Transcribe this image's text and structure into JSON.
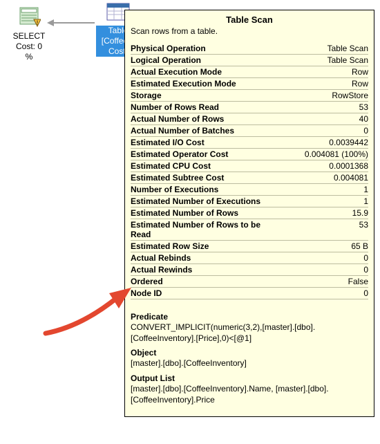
{
  "operators": {
    "select": {
      "label_line1": "SELECT",
      "label_line2": "Cost: 0 %",
      "icon_warn_color": "#f6c340",
      "icon_fill": "#d5ead0",
      "icon_border": "#6fa36f"
    },
    "scan": {
      "label_line1": "Table",
      "label_line2": "[CoffeeIn",
      "label_line3": "Cost:",
      "icon_fill": "#f4f4f4",
      "icon_border": "#5a5aa8",
      "icon_header": "#3a6eaa"
    }
  },
  "connector": {
    "line_color": "#9a9a9a",
    "arrow_color": "#9a9a9a"
  },
  "tooltip": {
    "title": "Table Scan",
    "subtitle": "Scan rows from a table.",
    "background": "#ffffe1",
    "border_color": "#000000",
    "row_border_color": "#bcbca0",
    "properties": [
      {
        "k": "Physical Operation",
        "v": "Table Scan"
      },
      {
        "k": "Logical Operation",
        "v": "Table Scan"
      },
      {
        "k": "Actual Execution Mode",
        "v": "Row"
      },
      {
        "k": "Estimated Execution Mode",
        "v": "Row"
      },
      {
        "k": "Storage",
        "v": "RowStore"
      },
      {
        "k": "Number of Rows Read",
        "v": "53"
      },
      {
        "k": "Actual Number of Rows",
        "v": "40"
      },
      {
        "k": "Actual Number of Batches",
        "v": "0"
      },
      {
        "k": "Estimated I/O Cost",
        "v": "0.0039442"
      },
      {
        "k": "Estimated Operator Cost",
        "v": "0.004081 (100%)"
      },
      {
        "k": "Estimated CPU Cost",
        "v": "0.0001368"
      },
      {
        "k": "Estimated Subtree Cost",
        "v": "0.004081"
      },
      {
        "k": "Number of Executions",
        "v": "1"
      },
      {
        "k": "Estimated Number of Executions",
        "v": "1"
      },
      {
        "k": "Estimated Number of Rows",
        "v": "15.9"
      },
      {
        "k": "Estimated Number of Rows to be Read",
        "v": "53"
      },
      {
        "k": "Estimated Row Size",
        "v": "65 B"
      },
      {
        "k": "Actual Rebinds",
        "v": "0"
      },
      {
        "k": "Actual Rewinds",
        "v": "0"
      },
      {
        "k": "Ordered",
        "v": "False"
      },
      {
        "k": "Node ID",
        "v": "0"
      }
    ],
    "sections": [
      {
        "label": "Predicate",
        "text": "CONVERT_IMPLICIT(numeric(3,2),[master].[dbo].[CoffeeInventory].[Price],0)<[@1]"
      },
      {
        "label": "Object",
        "text": "[master].[dbo].[CoffeeInventory]"
      },
      {
        "label": "Output List",
        "text": "[master].[dbo].[CoffeeInventory].Name, [master].[dbo].[CoffeeInventory].Price"
      }
    ]
  },
  "call_arrow": {
    "color": "#e3472f"
  }
}
